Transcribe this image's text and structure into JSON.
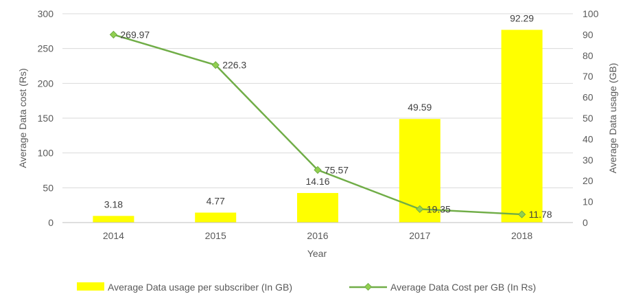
{
  "chart_data": {
    "type": "bar",
    "title": "",
    "xlabel": "Year",
    "ylabel_left": "Average Data cost (Rs)",
    "ylabel_right": "Average  Data usage (GB)",
    "categories": [
      "2014",
      "2015",
      "2016",
      "2017",
      "2018"
    ],
    "ylim_left": [
      0,
      300
    ],
    "ylim_right": [
      0,
      100
    ],
    "yticks_left": [
      "0",
      "50",
      "100",
      "150",
      "200",
      "250",
      "300"
    ],
    "yticks_right": [
      "0",
      "10",
      "20",
      "30",
      "40",
      "50",
      "60",
      "70",
      "80",
      "90",
      "100"
    ],
    "grid": true,
    "legend_position": "bottom",
    "series": [
      {
        "name": "Average Data usage per subscriber (In GB)",
        "kind": "bar",
        "axis": "right",
        "color": "#FFFF00",
        "values": [
          3.18,
          4.77,
          14.16,
          49.59,
          92.29
        ],
        "labels": [
          "3.18",
          "4.77",
          "14.16",
          "49.59",
          "92.29"
        ]
      },
      {
        "name": "Average Data Cost per GB (In Rs)",
        "kind": "line",
        "axis": "left",
        "color": "#70AD47",
        "marker_color": "#92D050",
        "values": [
          269.97,
          226.3,
          75.57,
          19.35,
          11.78
        ],
        "labels": [
          "269.97",
          "226.3",
          "75.57",
          "19.35",
          "11.78"
        ]
      }
    ]
  }
}
